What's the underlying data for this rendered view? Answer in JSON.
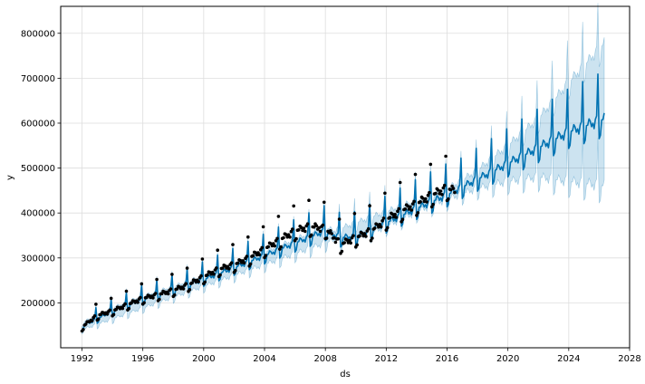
{
  "chart_data": {
    "type": "line",
    "title": "",
    "xlabel": "ds",
    "ylabel": "y",
    "xlim": [
      1990.6,
      2028.0
    ],
    "ylim": [
      100000,
      860000
    ],
    "x_ticks": [
      1992,
      1996,
      2000,
      2004,
      2008,
      2012,
      2016,
      2020,
      2024,
      2028
    ],
    "y_ticks": [
      200000,
      300000,
      400000,
      500000,
      600000,
      700000,
      800000
    ],
    "y_tick_labels": [
      "200000",
      "300000",
      "400000",
      "500000",
      "600000",
      "700000",
      "800000"
    ],
    "grid": true,
    "history_end": 2016.5,
    "forecast_end": 2026.4,
    "series": [
      {
        "kind": "observed",
        "marker": "dot",
        "x": [
          1992.0,
          1993.0,
          1994.0,
          1995.0,
          1996.0,
          1997.0,
          1998.0,
          1999.0,
          2000.0,
          2001.0,
          2002.0,
          2003.0,
          2004.0,
          2005.0,
          2006.0,
          2007.0,
          2008.0,
          2009.0,
          2010.0,
          2011.0,
          2012.0,
          2013.0,
          2014.0,
          2015.0,
          2016.0,
          2016.4
        ],
        "y": [
          146000,
          172000,
          182000,
          196000,
          210000,
          218000,
          228000,
          240000,
          258000,
          275000,
          285000,
          300000,
          320000,
          340000,
          360000,
          370000,
          365000,
          330000,
          345000,
          360000,
          385000,
          405000,
          420000,
          440000,
          455000,
          450000
        ]
      },
      {
        "kind": "forecast",
        "x": [
          1992.0,
          1994.0,
          1996.0,
          1998.0,
          2000.0,
          2002.0,
          2004.0,
          2006.0,
          2008.0,
          2009.0,
          2010.0,
          2012.0,
          2014.0,
          2016.0,
          2018.0,
          2020.0,
          2022.0,
          2024.0,
          2026.4
        ],
        "y": [
          148000,
          181000,
          207000,
          228000,
          252000,
          278000,
          305000,
          333000,
          360000,
          345000,
          348000,
          378000,
          410000,
          440000,
          475000,
          510000,
          545000,
          580000,
          610000
        ]
      },
      {
        "kind": "uncertainty",
        "x": [
          1992.0,
          2016.0,
          2018.0,
          2020.0,
          2022.0,
          2024.0,
          2026.4
        ],
        "lower": [
          140000,
          430000,
          455000,
          470000,
          480000,
          470000,
          460000
        ],
        "upper": [
          156000,
          452000,
          495000,
          550000,
          610000,
          690000,
          780000
        ]
      }
    ],
    "colors": {
      "forecast": "#0072b2",
      "band": "#0072b2",
      "points": "#000000",
      "grid": "#dddddd"
    }
  }
}
